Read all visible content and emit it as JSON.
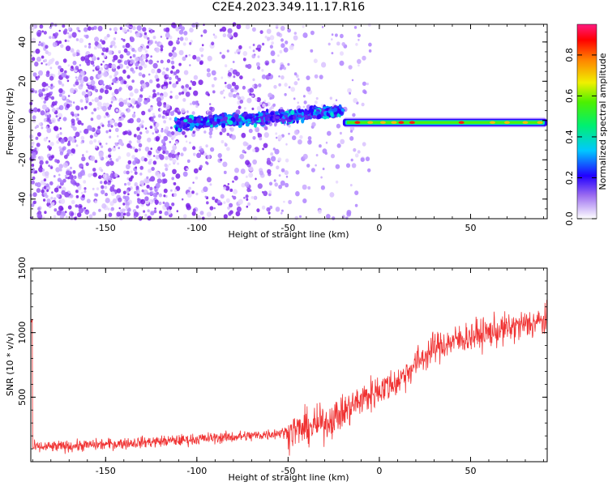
{
  "title": "C2E4.2023.349.11.17.R16",
  "chart_data": [
    {
      "type": "heatmap",
      "xlabel": "Height of straight line (km)",
      "ylabel": "Frequency (Hz)",
      "xlim": [
        -191,
        92
      ],
      "ylim": [
        -50,
        49
      ],
      "xticks": [
        -150,
        -100,
        -50,
        0,
        50
      ],
      "yticks": [
        -40,
        -20,
        0,
        20,
        40
      ],
      "colorbar": {
        "label": "Normalized spectral amplitude",
        "range": [
          0.0,
          0.95
        ],
        "ticks": [
          0.0,
          0.2,
          0.4,
          0.6,
          0.8
        ]
      },
      "ridge": [
        {
          "x": -110,
          "y": -2
        },
        {
          "x": -90,
          "y": 0
        },
        {
          "x": -70,
          "y": 1
        },
        {
          "x": -50,
          "y": 2
        },
        {
          "x": -35,
          "y": 4
        },
        {
          "x": -20,
          "y": 5
        },
        {
          "x": -10,
          "y": -1
        },
        {
          "x": 0,
          "y": -1
        },
        {
          "x": 10,
          "y": -1
        },
        {
          "x": 20,
          "y": -1
        },
        {
          "x": 50,
          "y": -1
        },
        {
          "x": 90,
          "y": -1
        }
      ]
    },
    {
      "type": "line",
      "xlabel": "Height of straight line (km)",
      "ylabel": "SNR (10 * v/v)",
      "xlim": [
        -191,
        92
      ],
      "ylim": [
        0,
        1500
      ],
      "xticks": [
        -150,
        -100,
        -50,
        0,
        50
      ],
      "yticks": [
        500,
        1000,
        1500
      ],
      "color": "#f03232",
      "series": [
        {
          "x": [
            -190,
            -170,
            -150,
            -130,
            -110,
            -90,
            -70,
            -50,
            -40,
            -30,
            -20,
            -10,
            0,
            10,
            20,
            30,
            40,
            50,
            60,
            70,
            80,
            90
          ],
          "values": [
            110,
            120,
            135,
            150,
            165,
            185,
            200,
            230,
            260,
            300,
            380,
            480,
            560,
            620,
            760,
            880,
            930,
            970,
            1000,
            1030,
            1060,
            1090
          ]
        }
      ]
    }
  ]
}
